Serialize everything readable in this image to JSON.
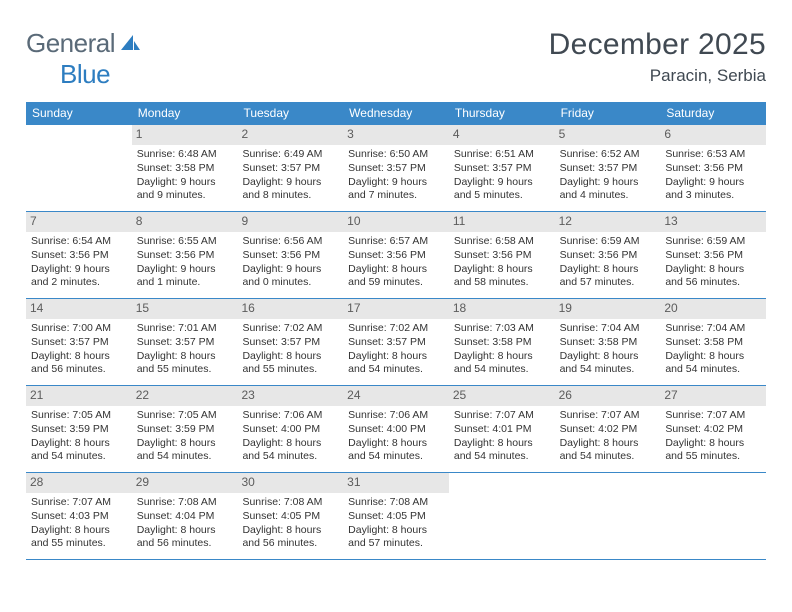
{
  "brand": {
    "part1": "General",
    "part2": "Blue"
  },
  "title": "December 2025",
  "location": "Paracin, Serbia",
  "weekdays": [
    "Sunday",
    "Monday",
    "Tuesday",
    "Wednesday",
    "Thursday",
    "Friday",
    "Saturday"
  ],
  "colors": {
    "header_bg": "#3a88c8",
    "header_text": "#ffffff",
    "daynum_bg": "#e7e7e7",
    "daynum_text": "#5c5c5c",
    "rule": "#3a88c8",
    "body_text": "#333333",
    "brand_gray": "#5a6a78",
    "brand_blue": "#2d7dc0"
  },
  "weeks": [
    [
      {
        "n": null
      },
      {
        "n": "1",
        "sunrise": "6:48 AM",
        "sunset": "3:58 PM",
        "daylight": "9 hours and 9 minutes."
      },
      {
        "n": "2",
        "sunrise": "6:49 AM",
        "sunset": "3:57 PM",
        "daylight": "9 hours and 8 minutes."
      },
      {
        "n": "3",
        "sunrise": "6:50 AM",
        "sunset": "3:57 PM",
        "daylight": "9 hours and 7 minutes."
      },
      {
        "n": "4",
        "sunrise": "6:51 AM",
        "sunset": "3:57 PM",
        "daylight": "9 hours and 5 minutes."
      },
      {
        "n": "5",
        "sunrise": "6:52 AM",
        "sunset": "3:57 PM",
        "daylight": "9 hours and 4 minutes."
      },
      {
        "n": "6",
        "sunrise": "6:53 AM",
        "sunset": "3:56 PM",
        "daylight": "9 hours and 3 minutes."
      }
    ],
    [
      {
        "n": "7",
        "sunrise": "6:54 AM",
        "sunset": "3:56 PM",
        "daylight": "9 hours and 2 minutes."
      },
      {
        "n": "8",
        "sunrise": "6:55 AM",
        "sunset": "3:56 PM",
        "daylight": "9 hours and 1 minute."
      },
      {
        "n": "9",
        "sunrise": "6:56 AM",
        "sunset": "3:56 PM",
        "daylight": "9 hours and 0 minutes."
      },
      {
        "n": "10",
        "sunrise": "6:57 AM",
        "sunset": "3:56 PM",
        "daylight": "8 hours and 59 minutes."
      },
      {
        "n": "11",
        "sunrise": "6:58 AM",
        "sunset": "3:56 PM",
        "daylight": "8 hours and 58 minutes."
      },
      {
        "n": "12",
        "sunrise": "6:59 AM",
        "sunset": "3:56 PM",
        "daylight": "8 hours and 57 minutes."
      },
      {
        "n": "13",
        "sunrise": "6:59 AM",
        "sunset": "3:56 PM",
        "daylight": "8 hours and 56 minutes."
      }
    ],
    [
      {
        "n": "14",
        "sunrise": "7:00 AM",
        "sunset": "3:57 PM",
        "daylight": "8 hours and 56 minutes."
      },
      {
        "n": "15",
        "sunrise": "7:01 AM",
        "sunset": "3:57 PM",
        "daylight": "8 hours and 55 minutes."
      },
      {
        "n": "16",
        "sunrise": "7:02 AM",
        "sunset": "3:57 PM",
        "daylight": "8 hours and 55 minutes."
      },
      {
        "n": "17",
        "sunrise": "7:02 AM",
        "sunset": "3:57 PM",
        "daylight": "8 hours and 54 minutes."
      },
      {
        "n": "18",
        "sunrise": "7:03 AM",
        "sunset": "3:58 PM",
        "daylight": "8 hours and 54 minutes."
      },
      {
        "n": "19",
        "sunrise": "7:04 AM",
        "sunset": "3:58 PM",
        "daylight": "8 hours and 54 minutes."
      },
      {
        "n": "20",
        "sunrise": "7:04 AM",
        "sunset": "3:58 PM",
        "daylight": "8 hours and 54 minutes."
      }
    ],
    [
      {
        "n": "21",
        "sunrise": "7:05 AM",
        "sunset": "3:59 PM",
        "daylight": "8 hours and 54 minutes."
      },
      {
        "n": "22",
        "sunrise": "7:05 AM",
        "sunset": "3:59 PM",
        "daylight": "8 hours and 54 minutes."
      },
      {
        "n": "23",
        "sunrise": "7:06 AM",
        "sunset": "4:00 PM",
        "daylight": "8 hours and 54 minutes."
      },
      {
        "n": "24",
        "sunrise": "7:06 AM",
        "sunset": "4:00 PM",
        "daylight": "8 hours and 54 minutes."
      },
      {
        "n": "25",
        "sunrise": "7:07 AM",
        "sunset": "4:01 PM",
        "daylight": "8 hours and 54 minutes."
      },
      {
        "n": "26",
        "sunrise": "7:07 AM",
        "sunset": "4:02 PM",
        "daylight": "8 hours and 54 minutes."
      },
      {
        "n": "27",
        "sunrise": "7:07 AM",
        "sunset": "4:02 PM",
        "daylight": "8 hours and 55 minutes."
      }
    ],
    [
      {
        "n": "28",
        "sunrise": "7:07 AM",
        "sunset": "4:03 PM",
        "daylight": "8 hours and 55 minutes."
      },
      {
        "n": "29",
        "sunrise": "7:08 AM",
        "sunset": "4:04 PM",
        "daylight": "8 hours and 56 minutes."
      },
      {
        "n": "30",
        "sunrise": "7:08 AM",
        "sunset": "4:05 PM",
        "daylight": "8 hours and 56 minutes."
      },
      {
        "n": "31",
        "sunrise": "7:08 AM",
        "sunset": "4:05 PM",
        "daylight": "8 hours and 57 minutes."
      },
      {
        "n": null
      },
      {
        "n": null
      },
      {
        "n": null
      }
    ]
  ],
  "labels": {
    "sunrise": "Sunrise:",
    "sunset": "Sunset:",
    "daylight": "Daylight:"
  }
}
